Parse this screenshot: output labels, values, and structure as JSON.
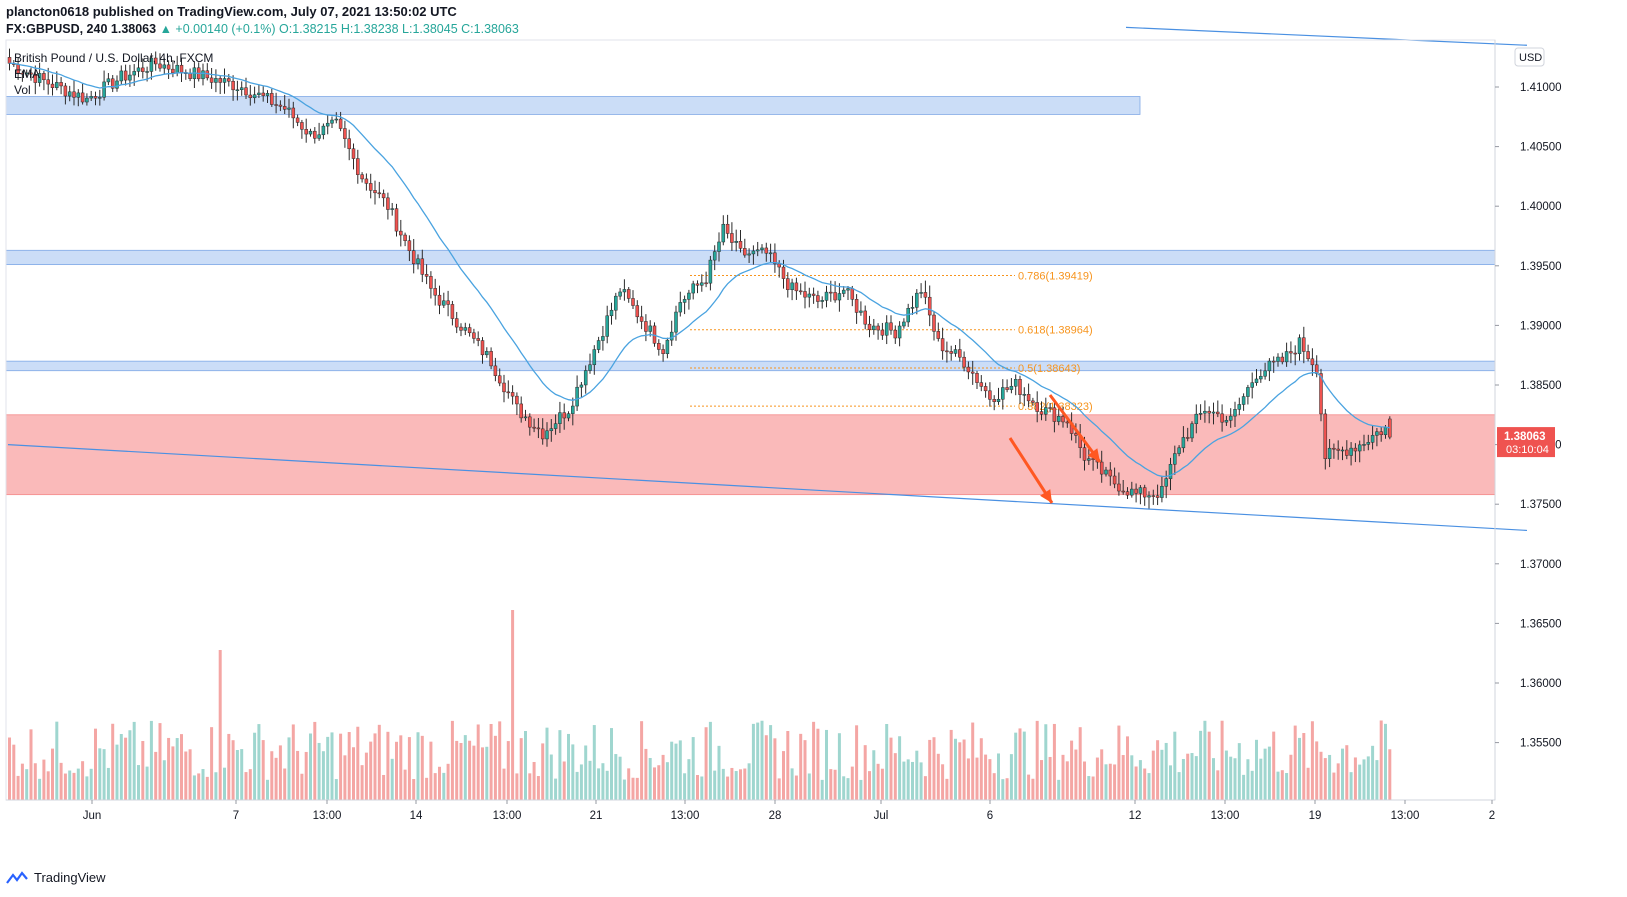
{
  "header": {
    "line1": "plancton0618 published on TradingView.com, July 07, 2021 13:50:02 UTC",
    "symbol": "FX:GBPUSD, 240",
    "price": "1.38063",
    "change": "▲ +0.00140 (+0.1%)",
    "o_label": "O:",
    "o": "1.38215",
    "h_label": "H:",
    "h": "1.38238",
    "l_label": "L:",
    "l": "1.38045",
    "c_label": "C:",
    "c": "1.38063"
  },
  "legend": {
    "title": "British Pound / U.S. Dollar, 4h, FXCM",
    "ema": "EMA",
    "vol": "Vol"
  },
  "footer": {
    "brand": "TradingView"
  },
  "chart_data": {
    "type": "candlestick",
    "currency_label": "USD",
    "last_price": "1.38063",
    "countdown": "03:10:04",
    "y_ticks": [
      "1.41000",
      "1.40500",
      "1.40000",
      "1.39500",
      "1.39000",
      "1.38500",
      "1.38000",
      "1.37500",
      "1.37000",
      "1.36500",
      "1.36000",
      "1.35500"
    ],
    "x_ticks": [
      "Jun",
      "7",
      "13:00",
      "14",
      "13:00",
      "21",
      "13:00",
      "28",
      "Jul",
      "6",
      "12",
      "13:00",
      "19",
      "13:00",
      "2"
    ],
    "ylim": [
      1.3513,
      1.415
    ],
    "fib_levels": [
      {
        "label": "0.786(1.39419)",
        "value": 1.39419
      },
      {
        "label": "0.618(1.38964)",
        "value": 1.38964
      },
      {
        "label": "0.5(1.38643)",
        "value": 1.38643
      },
      {
        "label": "0.382(1.38323)",
        "value": 1.38323
      }
    ],
    "zones": [
      {
        "kind": "resistance",
        "from": 1.4077,
        "to": 1.4092,
        "color": "#a8c6f2"
      },
      {
        "kind": "resistance",
        "from": 1.3951,
        "to": 1.3963,
        "color": "#a8c6f2"
      },
      {
        "kind": "resistance",
        "from": 1.3862,
        "to": 1.387,
        "color": "#a8c6f2"
      },
      {
        "kind": "support",
        "from": 1.3758,
        "to": 1.3825,
        "color": "#fab3b3"
      }
    ],
    "colors": {
      "up": "#26a69a",
      "down": "#ef5350",
      "ema": "#4aa3e0",
      "fib": "#f7941d",
      "arrow": "#ff5722",
      "trend": "#4a90e2",
      "lastprice": "#ef5350"
    },
    "candle_anchors": [
      [
        0,
        1.412
      ],
      [
        8,
        1.4105
      ],
      [
        18,
        1.409
      ],
      [
        26,
        1.4108
      ],
      [
        34,
        1.412
      ],
      [
        44,
        1.411
      ],
      [
        54,
        1.41
      ],
      [
        64,
        1.4082
      ],
      [
        70,
        1.406
      ],
      [
        76,
        1.4068
      ],
      [
        82,
        1.4025
      ],
      [
        88,
        1.4
      ],
      [
        92,
        1.397
      ],
      [
        98,
        1.393
      ],
      [
        105,
        1.39
      ],
      [
        112,
        1.387
      ],
      [
        118,
        1.383
      ],
      [
        124,
        1.381
      ],
      [
        130,
        1.383
      ],
      [
        136,
        1.388
      ],
      [
        142,
        1.393
      ],
      [
        148,
        1.39
      ],
      [
        152,
        1.388
      ],
      [
        156,
        1.392
      ],
      [
        162,
        1.394
      ],
      [
        166,
        1.398
      ],
      [
        170,
        1.396
      ],
      [
        176,
        1.396
      ],
      [
        182,
        1.393
      ],
      [
        188,
        1.392
      ],
      [
        194,
        1.393
      ],
      [
        200,
        1.39
      ],
      [
        206,
        1.3895
      ],
      [
        212,
        1.393
      ],
      [
        216,
        1.3885
      ],
      [
        222,
        1.387
      ],
      [
        228,
        1.384
      ],
      [
        234,
        1.385
      ],
      [
        240,
        1.383
      ],
      [
        246,
        1.382
      ],
      [
        250,
        1.379
      ],
      [
        256,
        1.377
      ],
      [
        262,
        1.3758
      ],
      [
        268,
        1.376
      ],
      [
        272,
        1.38
      ],
      [
        278,
        1.383
      ],
      [
        284,
        1.382
      ],
      [
        290,
        1.386
      ],
      [
        296,
        1.387
      ],
      [
        300,
        1.3885
      ],
      [
        304,
        1.3865
      ],
      [
        306,
        1.379
      ],
      [
        310,
        1.3795
      ],
      [
        314,
        1.38
      ],
      [
        318,
        1.381
      ],
      [
        321,
        1.3815
      ]
    ],
    "trendlines": [
      {
        "from": [
          0,
          1.38
        ],
        "to": [
          330,
          1.3728
        ]
      },
      {
        "from": [
          260,
          1.415
        ],
        "to": [
          330,
          1.4135
        ]
      }
    ]
  }
}
